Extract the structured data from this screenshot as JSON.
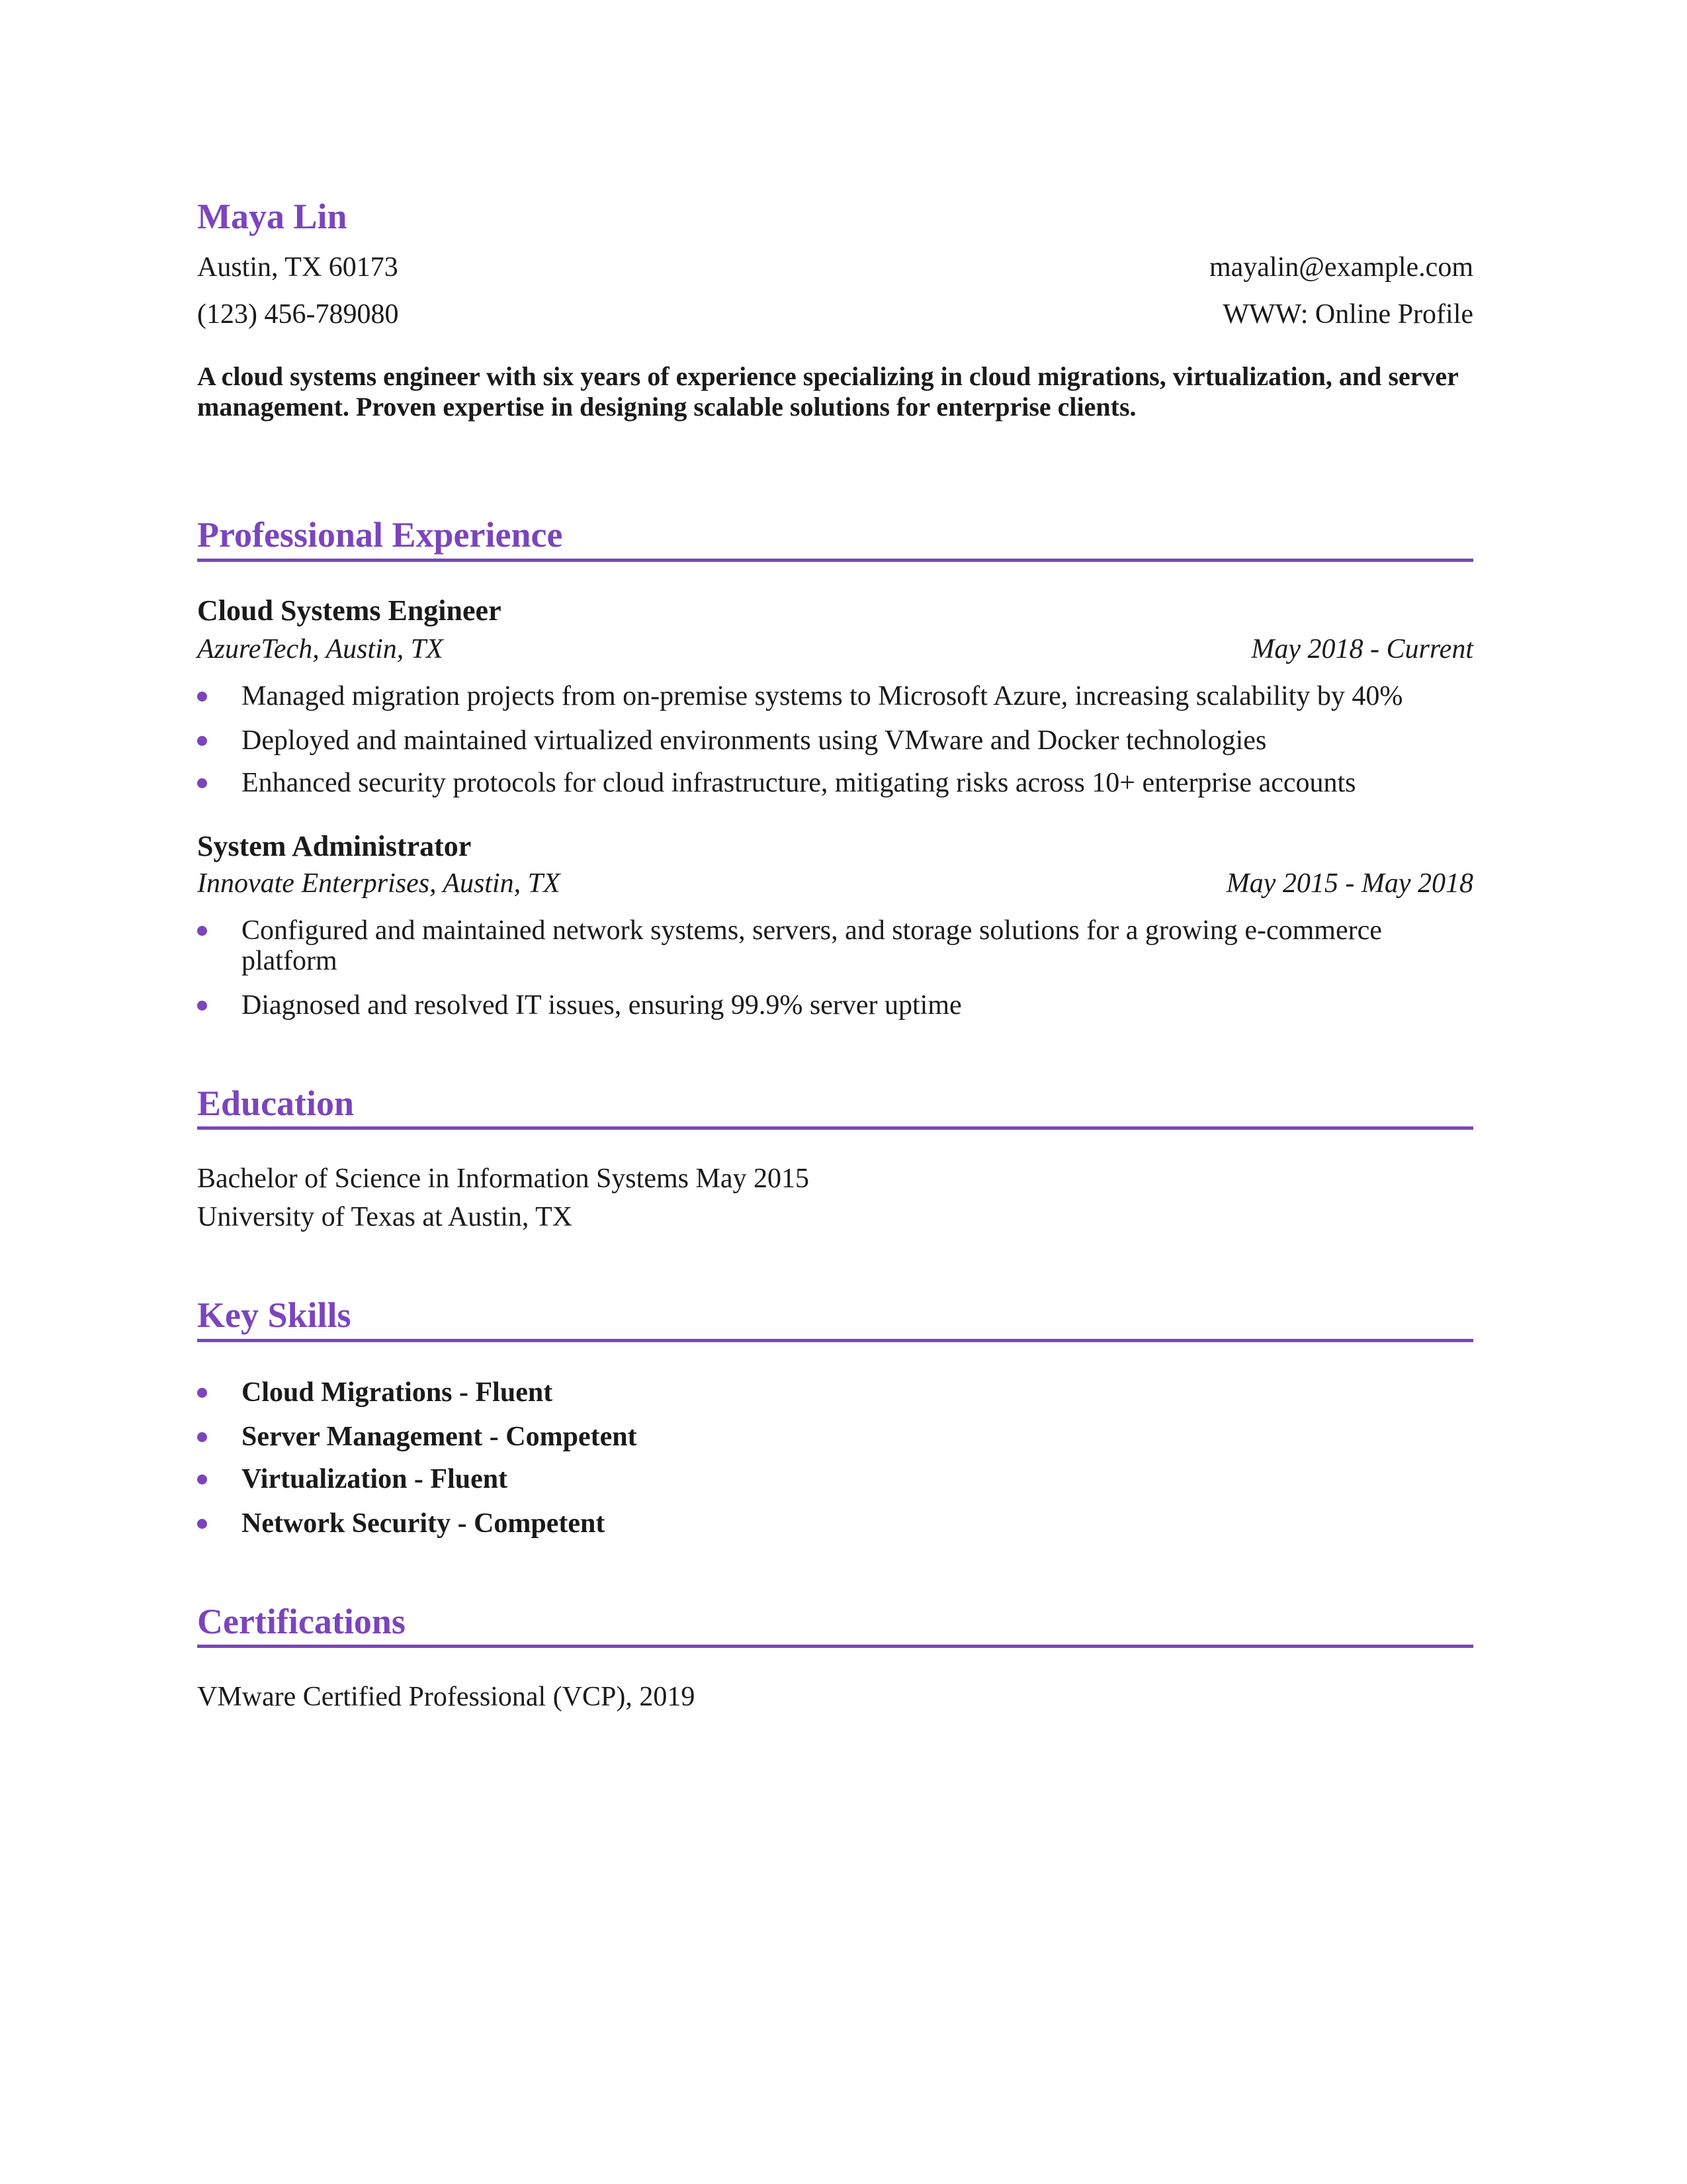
{
  "header": {
    "name": "Maya Lin",
    "address": "Austin, TX 60173",
    "email": "mayalin@example.com",
    "phone": "(123) 456-789080",
    "website": "WWW: Online Profile"
  },
  "summary": "A cloud systems engineer with six years of experience specializing in cloud migrations, virtualization, and server management. Proven expertise in designing scalable solutions for enterprise clients.",
  "experience": {
    "title": "Professional Experience",
    "jobs": [
      {
        "title": "Cloud Systems Engineer",
        "company": "AzureTech, Austin, TX",
        "dates": "May 2018 - Current",
        "bullets": [
          "Managed migration projects from on-premise systems to Microsoft Azure, increasing scalability by 40%",
          "Deployed and maintained virtualized environments using VMware and Docker technologies",
          "Enhanced security protocols for cloud infrastructure, mitigating risks across 10+ enterprise accounts"
        ]
      },
      {
        "title": "System Administrator",
        "company": "Innovate Enterprises, Austin, TX",
        "dates": "May 2015 - May 2018",
        "bullets": [
          "Configured and maintained network systems, servers, and storage solutions for a growing e-commerce platform",
          "Diagnosed and resolved IT issues, ensuring 99.9% server uptime"
        ]
      }
    ]
  },
  "education": {
    "title": "Education",
    "lines": [
      "Bachelor of Science in Information Systems May 2015",
      "University of Texas at Austin, TX"
    ]
  },
  "skills": {
    "title": "Key Skills",
    "items": [
      "Cloud Migrations - Fluent",
      "Server Management - Competent",
      "Virtualization - Fluent",
      "Network Security - Competent"
    ]
  },
  "certifications": {
    "title": "Certifications",
    "items": [
      "VMware Certified Professional (VCP), 2019"
    ]
  }
}
